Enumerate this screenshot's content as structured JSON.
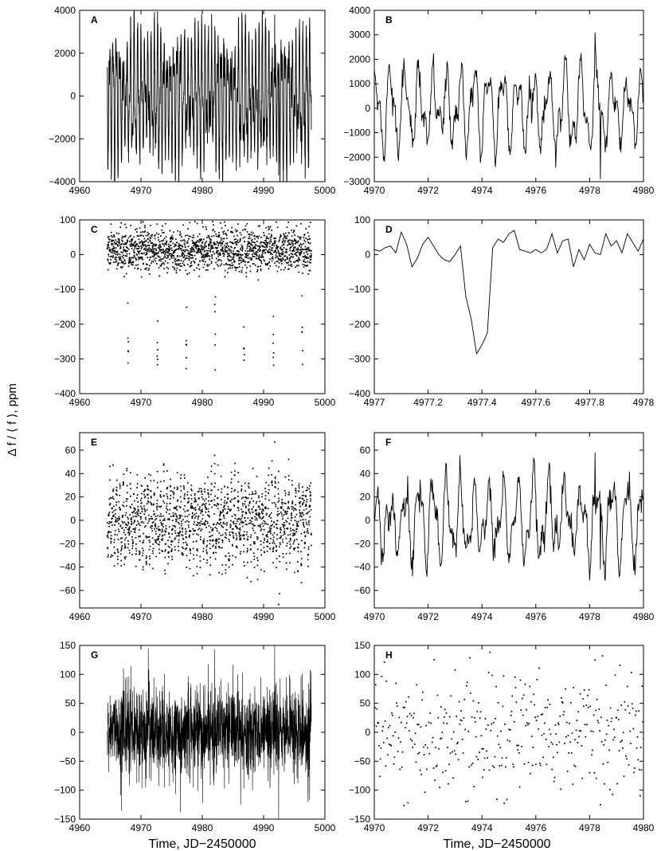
{
  "figure": {
    "ylabel": "Δ f / ⟨ f ⟩, ppm",
    "xlabel_left": "Time, JD−2450000",
    "xlabel_right": "Time, JD−2450000"
  },
  "chart_data": [
    {
      "panel": "A",
      "type": "line",
      "xlim": [
        4960,
        5000
      ],
      "ylim": [
        -4000,
        4000
      ],
      "xticks": [
        4960,
        4970,
        4980,
        4990,
        5000
      ],
      "yticks": [
        -4000,
        -2000,
        0,
        2000,
        4000
      ],
      "data_range_x": [
        4964.5,
        4997.8
      ],
      "waveform": {
        "kind": "oscillation",
        "amplitude": 2600,
        "period": 0.55,
        "noise": 400,
        "extremes": [
          3800,
          -3700
        ]
      }
    },
    {
      "panel": "B",
      "type": "line",
      "xlim": [
        4970,
        4980
      ],
      "ylim": [
        -3000,
        4000
      ],
      "xticks": [
        4970,
        4972,
        4974,
        4976,
        4978,
        4980
      ],
      "yticks": [
        -3000,
        -2000,
        -1000,
        0,
        1000,
        2000,
        3000,
        4000
      ],
      "data_range_x": [
        4970,
        4980
      ],
      "waveform": {
        "kind": "oscillation",
        "amplitude": 1500,
        "period": 0.55,
        "noise": 250,
        "extremes": [
          3100,
          -2900
        ]
      }
    },
    {
      "panel": "C",
      "type": "scatter",
      "xlim": [
        4960,
        5000
      ],
      "ylim": [
        -400,
        100
      ],
      "xticks": [
        4960,
        4970,
        4980,
        4990,
        5000
      ],
      "yticks": [
        -400,
        -300,
        -200,
        -100,
        0,
        100
      ],
      "data_range_x": [
        4964.5,
        4997.8
      ],
      "baseline": {
        "mean": 15,
        "scatter": 30
      },
      "transit_centers": [
        4967.9,
        4972.7,
        4977.4,
        4982.1,
        4986.8,
        4991.6,
        4996.3
      ],
      "transit_depth": -280
    },
    {
      "panel": "D",
      "type": "line",
      "xlim": [
        4977,
        4978
      ],
      "ylim": [
        -400,
        100
      ],
      "xticks": [
        4977,
        4977.2,
        4977.4,
        4977.6,
        4977.8,
        4978
      ],
      "yticks": [
        -400,
        -300,
        -200,
        -100,
        0,
        100
      ],
      "x": [
        4977.0,
        4977.02,
        4977.04,
        4977.06,
        4977.08,
        4977.1,
        4977.12,
        4977.14,
        4977.16,
        4977.18,
        4977.2,
        4977.22,
        4977.24,
        4977.26,
        4977.28,
        4977.3,
        4977.32,
        4977.34,
        4977.36,
        4977.38,
        4977.4,
        4977.42,
        4977.44,
        4977.46,
        4977.48,
        4977.5,
        4977.52,
        4977.54,
        4977.56,
        4977.58,
        4977.6,
        4977.62,
        4977.64,
        4977.66,
        4977.68,
        4977.7,
        4977.72,
        4977.74,
        4977.76,
        4977.78,
        4977.8,
        4977.82,
        4977.84,
        4977.86,
        4977.88,
        4977.9,
        4977.92,
        4977.94,
        4977.96,
        4977.98,
        4978.0
      ],
      "y": [
        15,
        10,
        20,
        25,
        5,
        65,
        30,
        -35,
        -10,
        30,
        50,
        25,
        0,
        -15,
        -20,
        0,
        25,
        -120,
        -185,
        -285,
        -260,
        -225,
        20,
        45,
        35,
        60,
        70,
        15,
        10,
        5,
        15,
        5,
        15,
        60,
        5,
        40,
        45,
        -35,
        15,
        -15,
        30,
        5,
        0,
        60,
        25,
        40,
        5,
        60,
        35,
        10,
        45
      ]
    },
    {
      "panel": "E",
      "type": "scatter",
      "xlim": [
        4960,
        5000
      ],
      "ylim": [
        -75,
        75
      ],
      "xticks": [
        4960,
        4970,
        4980,
        4990,
        5000
      ],
      "yticks": [
        -60,
        -40,
        -20,
        0,
        20,
        40,
        60
      ],
      "data_range_x": [
        4964.5,
        4997.8
      ],
      "waveform": {
        "kind": "oscillation",
        "amplitude": 25,
        "period": 0.55,
        "noise": 10,
        "extremes": [
          67,
          -72
        ]
      }
    },
    {
      "panel": "F",
      "type": "line",
      "xlim": [
        4970,
        4980
      ],
      "ylim": [
        -75,
        75
      ],
      "xticks": [
        4970,
        4972,
        4974,
        4976,
        4978,
        4980
      ],
      "yticks": [
        -60,
        -40,
        -20,
        0,
        20,
        40,
        60
      ],
      "data_range_x": [
        4970,
        4980
      ],
      "waveform": {
        "kind": "oscillation",
        "amplitude": 32,
        "period": 0.55,
        "noise": 6,
        "extremes": [
          58,
          -42
        ]
      }
    },
    {
      "panel": "G",
      "type": "line",
      "xlim": [
        4960,
        5000
      ],
      "ylim": [
        -150,
        150
      ],
      "xticks": [
        4960,
        4970,
        4980,
        4990,
        5000
      ],
      "yticks": [
        -150,
        -100,
        -50,
        0,
        50,
        100,
        150
      ],
      "data_range_x": [
        4964.5,
        4997.8
      ],
      "waveform": {
        "kind": "noise",
        "sigma": 38,
        "extremes": [
          150,
          -150
        ]
      }
    },
    {
      "panel": "H",
      "type": "scatter",
      "xlim": [
        4970,
        4980
      ],
      "ylim": [
        -150,
        150
      ],
      "xticks": [
        4970,
        4972,
        4974,
        4976,
        4978,
        4980
      ],
      "yticks": [
        -150,
        -100,
        -50,
        0,
        50,
        100,
        150
      ],
      "data_range_x": [
        4970,
        4980
      ],
      "waveform": {
        "kind": "noise",
        "sigma": 48,
        "extremes": [
          125,
          -125
        ]
      }
    }
  ]
}
